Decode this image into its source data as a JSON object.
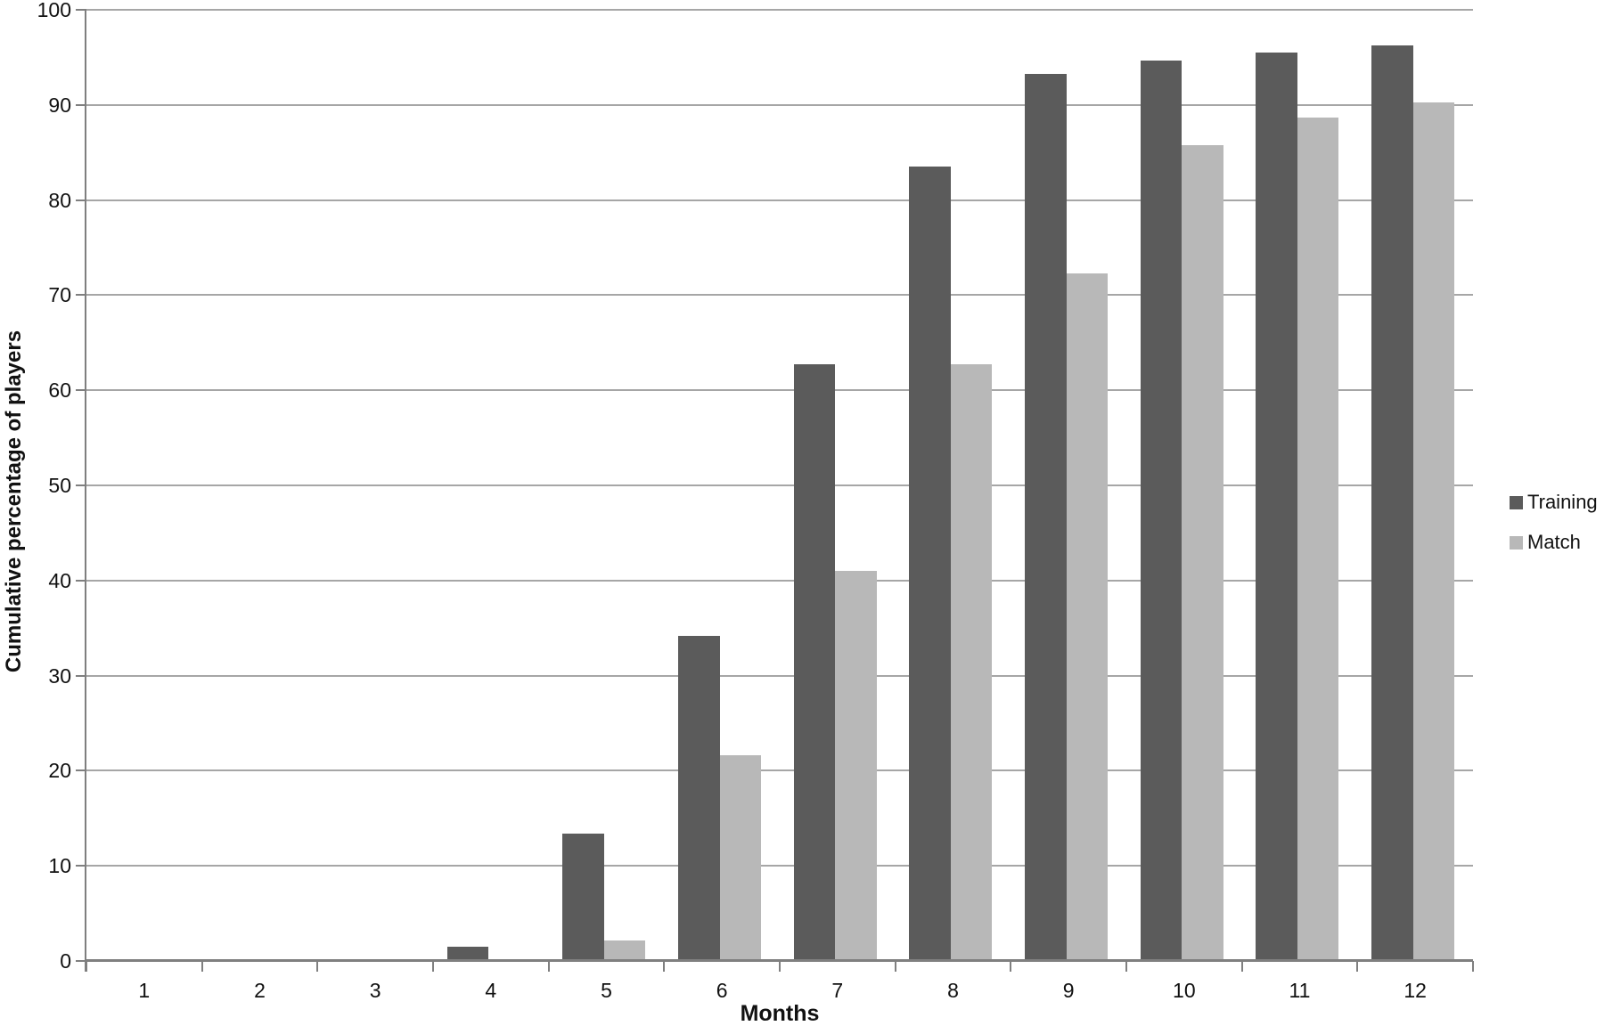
{
  "chart_data": {
    "type": "bar",
    "title": "",
    "xlabel": "Months",
    "ylabel": "Cumulative percentage of players",
    "categories": [
      "1",
      "2",
      "3",
      "4",
      "5",
      "6",
      "7",
      "8",
      "9",
      "10",
      "11",
      "12"
    ],
    "series": [
      {
        "name": "Training",
        "color": "#5b5b5b",
        "values": [
          0,
          0,
          0,
          1.5,
          13.4,
          34.2,
          62.7,
          83.5,
          93.3,
          94.7,
          95.5,
          96.3
        ]
      },
      {
        "name": "Match",
        "color": "#b8b8b8",
        "values": [
          0,
          0,
          0,
          0,
          2.2,
          21.6,
          41.0,
          62.7,
          72.3,
          85.8,
          88.7,
          90.3
        ]
      }
    ],
    "ylim": [
      0,
      100
    ],
    "ytick_interval": 10,
    "grid": true,
    "legend_position": "right"
  },
  "colors": {
    "gridline": "#a6a6a6",
    "axis": "#7f7f7f",
    "text": "#111111",
    "background": "#ffffff"
  }
}
